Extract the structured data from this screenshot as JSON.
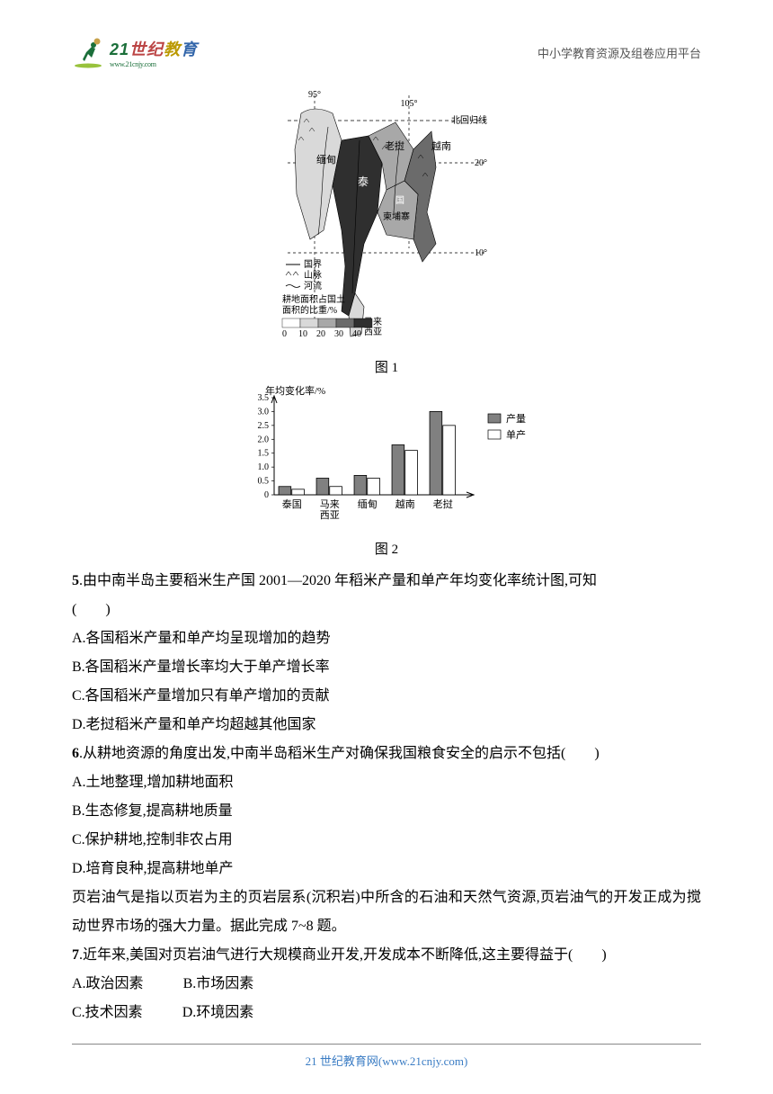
{
  "header": {
    "logo_text_21": "21",
    "logo_text_rest": "世纪教育",
    "logo_url": "www.21cnjy.com",
    "tagline": "中小学教育资源及组卷应用平台"
  },
  "figure1": {
    "type": "map",
    "label": "图 1",
    "legend": {
      "border": "国界",
      "mountain": "山脉",
      "river": "河流",
      "ratio_title": "耕地面积占国土\n面积的比重/%",
      "ratio_ticks": [
        "0",
        "10",
        "20",
        "30",
        "40"
      ]
    },
    "lon_labels": {
      "l95": "95°",
      "l105": "105°"
    },
    "lat_labels": {
      "tropic": "北回归线",
      "l20": "20°",
      "l10": "10°"
    },
    "countries": {
      "mm": "缅甸",
      "la": "老挝",
      "th": "泰",
      "vn": "越南",
      "kh": "柬埔寨",
      "my": "马来西亚",
      "bn": "国"
    },
    "colors": {
      "bg": "#ffffff",
      "line": "#000000",
      "shade0": "#ffffff",
      "shade10": "#d9d9d9",
      "shade20": "#a8a8a8",
      "shade30": "#6b6b6b",
      "shade40": "#2f2f2f"
    }
  },
  "figure2": {
    "type": "bar",
    "label": "图 2",
    "y_label": "年均变化率/%",
    "y_ticks": [
      "0",
      "0.5",
      "1.0",
      "1.5",
      "2.0",
      "2.5",
      "3.0",
      "3.5"
    ],
    "ylim": [
      0,
      3.5
    ],
    "categories": [
      "泰国",
      "马来\n西亚",
      "缅甸",
      "越南",
      "老挝"
    ],
    "series": [
      {
        "name": "产量",
        "color": "#808080",
        "values": [
          0.3,
          0.6,
          0.7,
          1.8,
          3.0
        ]
      },
      {
        "name": "单产",
        "color": "#ffffff",
        "values": [
          0.2,
          0.3,
          0.6,
          1.6,
          2.5
        ]
      }
    ],
    "legend": {
      "chan": "产量",
      "dan": "单产"
    },
    "bar_width": 0.35,
    "border_color": "#000000",
    "font_size": 11
  },
  "q5": {
    "num": "5",
    "stem": ".由中南半岛主要稻米生产国 2001—2020 年稻米产量和单产年均变化率统计图,可知",
    "paren": "(　　)",
    "A": "A.各国稻米产量和单产均呈现增加的趋势",
    "B": "B.各国稻米产量增长率均大于单产增长率",
    "C": "C.各国稻米产量增加只有单产增加的贡献",
    "D": "D.老挝稻米产量和单产均超越其他国家"
  },
  "q6": {
    "num": "6",
    "stem": ".从耕地资源的角度出发,中南半岛稻米生产对确保我国粮食安全的启示不包括(　　)",
    "A": "A.土地整理,增加耕地面积",
    "B": "B.生态修复,提高耕地质量",
    "C": "C.保护耕地,控制非农占用",
    "D": "D.培育良种,提高耕地单产"
  },
  "passage78": "页岩油气是指以页岩为主的页岩层系(沉积岩)中所含的石油和天然气资源,页岩油气的开发正成为搅动世界市场的强大力量。据此完成 7~8 题。",
  "q7": {
    "num": "7",
    "stem": ".近年来,美国对页岩油气进行大规模商业开发,开发成本不断降低,这主要得益于(　　)",
    "A": "A.政治因素",
    "B": "B.市场因素",
    "C": "C.技术因素",
    "D": "D.环境因素"
  },
  "footer": {
    "text": "21 世纪教育网(www.21cnjy.com)"
  }
}
